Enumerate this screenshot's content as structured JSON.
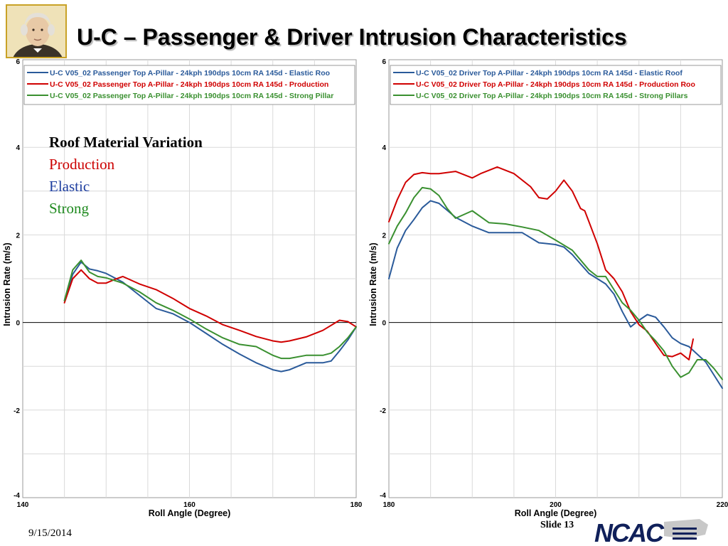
{
  "slide": {
    "title": "U-C – Passenger & Driver Intrusion Characteristics",
    "date": "9/15/2014",
    "slide_number": "Slide 13",
    "logo_text": "NCAC"
  },
  "annotation": {
    "heading": "Roof Material Variation",
    "items": [
      {
        "label": "Production",
        "color": "#cc0000"
      },
      {
        "label": "Elastic",
        "color": "#1f3fa0"
      },
      {
        "label": "Strong",
        "color": "#1f8a1f"
      }
    ]
  },
  "chart_data": [
    {
      "type": "line",
      "xlabel": "Roll Angle (Degree)",
      "ylabel": "Intrusion Rate (m/s)",
      "xlim": [
        140,
        180
      ],
      "ylim": [
        -4,
        6
      ],
      "x_ticks": [
        140,
        160,
        180
      ],
      "y_ticks": [
        -4,
        -2,
        0,
        2,
        4,
        6
      ],
      "grid": true,
      "legend_position": "top",
      "series": [
        {
          "name": "U-C V05_02 Passenger Top A-Pillar - 24kph 190dps 10cm RA 145d - Elastic Roo",
          "color": "#2a5a9a",
          "x": [
            145,
            146,
            147,
            148,
            149,
            150,
            152,
            154,
            156,
            158,
            160,
            162,
            164,
            166,
            168,
            170,
            171,
            172,
            173,
            174,
            176,
            177,
            178,
            179,
            180
          ],
          "y": [
            0.5,
            1.1,
            1.38,
            1.22,
            1.18,
            1.12,
            0.92,
            0.62,
            0.32,
            0.2,
            0.0,
            -0.25,
            -0.5,
            -0.72,
            -0.92,
            -1.08,
            -1.12,
            -1.08,
            -1.0,
            -0.92,
            -0.92,
            -0.88,
            -0.65,
            -0.4,
            -0.1
          ]
        },
        {
          "name": "U-C V05_02 Passenger Top A-Pillar - 24kph 190dps 10cm RA 145d - Production",
          "color": "#d00000",
          "x": [
            145,
            146,
            147,
            148,
            149,
            150,
            151,
            152,
            154,
            156,
            158,
            160,
            162,
            164,
            166,
            168,
            170,
            171,
            172,
            174,
            176,
            178,
            179,
            180
          ],
          "y": [
            0.45,
            1.0,
            1.2,
            1.0,
            0.9,
            0.9,
            0.98,
            1.05,
            0.88,
            0.75,
            0.55,
            0.32,
            0.15,
            -0.05,
            -0.18,
            -0.32,
            -0.42,
            -0.45,
            -0.42,
            -0.33,
            -0.18,
            0.05,
            0.02,
            -0.1
          ]
        },
        {
          "name": "U-C V05_02 Passenger Top A-Pillar - 24kph 190dps 10cm RA 145d - Strong Pillar",
          "color": "#3a9030",
          "x": [
            145,
            146,
            147,
            148,
            149,
            150,
            152,
            154,
            156,
            158,
            160,
            162,
            164,
            166,
            168,
            170,
            171,
            172,
            174,
            176,
            177,
            178,
            179,
            180
          ],
          "y": [
            0.5,
            1.2,
            1.42,
            1.15,
            1.05,
            1.02,
            0.9,
            0.7,
            0.45,
            0.28,
            0.08,
            -0.15,
            -0.35,
            -0.5,
            -0.55,
            -0.75,
            -0.82,
            -0.82,
            -0.75,
            -0.75,
            -0.7,
            -0.55,
            -0.35,
            -0.1
          ]
        }
      ]
    },
    {
      "type": "line",
      "xlabel": "Roll Angle (Degree)",
      "ylabel": "Intrusion Rate (m/s)",
      "xlim": [
        180,
        220
      ],
      "ylim": [
        -4,
        6
      ],
      "x_ticks": [
        180,
        200,
        220
      ],
      "y_ticks": [
        -4,
        -2,
        0,
        2,
        4,
        6
      ],
      "grid": true,
      "legend_position": "top",
      "series": [
        {
          "name": "U-C V05_02 Driver Top A-Pillar - 24kph 190dps 10cm RA 145d - Elastic Roof",
          "color": "#2a5a9a",
          "x": [
            180,
            181,
            182,
            183,
            184,
            185,
            186,
            188,
            190,
            192,
            194,
            196,
            198,
            200,
            201,
            202,
            204,
            206,
            207,
            208,
            209,
            210,
            211,
            212,
            213,
            214,
            215,
            216,
            218,
            220
          ],
          "y": [
            1.0,
            1.7,
            2.1,
            2.35,
            2.62,
            2.78,
            2.72,
            2.4,
            2.2,
            2.05,
            2.05,
            2.05,
            1.82,
            1.78,
            1.72,
            1.55,
            1.12,
            0.88,
            0.65,
            0.25,
            -0.1,
            0.05,
            0.18,
            0.12,
            -0.1,
            -0.35,
            -0.48,
            -0.55,
            -0.9,
            -1.5
          ]
        },
        {
          "name": "U-C V05_02 Driver Top A-Pillar - 24kph 190dps 10cm RA 145d - Production Roo",
          "color": "#d00000",
          "x": [
            180,
            181,
            182,
            183,
            184,
            185,
            186,
            188,
            190,
            191,
            193,
            195,
            197,
            198,
            199,
            200,
            201,
            202,
            203,
            203.5,
            204,
            205,
            206,
            207,
            208,
            209,
            210,
            211,
            212,
            213,
            214,
            215,
            216,
            216.5
          ],
          "y": [
            2.3,
            2.8,
            3.2,
            3.38,
            3.42,
            3.4,
            3.4,
            3.45,
            3.3,
            3.4,
            3.55,
            3.4,
            3.1,
            2.85,
            2.82,
            3.0,
            3.25,
            3.0,
            2.6,
            2.55,
            2.3,
            1.8,
            1.2,
            1.0,
            0.7,
            0.25,
            -0.05,
            -0.2,
            -0.48,
            -0.75,
            -0.78,
            -0.7,
            -0.85,
            -0.38
          ]
        },
        {
          "name": "U-C V05_02 Driver Top A-Pillar - 24kph 190dps 10cm RA 145d - Strong Pillars",
          "color": "#3a9030",
          "x": [
            180,
            181,
            182,
            183,
            184,
            185,
            186,
            187,
            188,
            190,
            192,
            194,
            196,
            198,
            200,
            202,
            204,
            205,
            206,
            207,
            208,
            209,
            210,
            211,
            212,
            213,
            214,
            215,
            216,
            217,
            218,
            219,
            220
          ],
          "y": [
            1.8,
            2.2,
            2.5,
            2.85,
            3.08,
            3.05,
            2.9,
            2.6,
            2.38,
            2.55,
            2.28,
            2.25,
            2.18,
            2.1,
            1.88,
            1.65,
            1.2,
            1.05,
            1.05,
            0.75,
            0.45,
            0.28,
            0.05,
            -0.22,
            -0.42,
            -0.65,
            -1.0,
            -1.25,
            -1.15,
            -0.85,
            -0.85,
            -1.05,
            -1.3
          ]
        }
      ]
    }
  ]
}
